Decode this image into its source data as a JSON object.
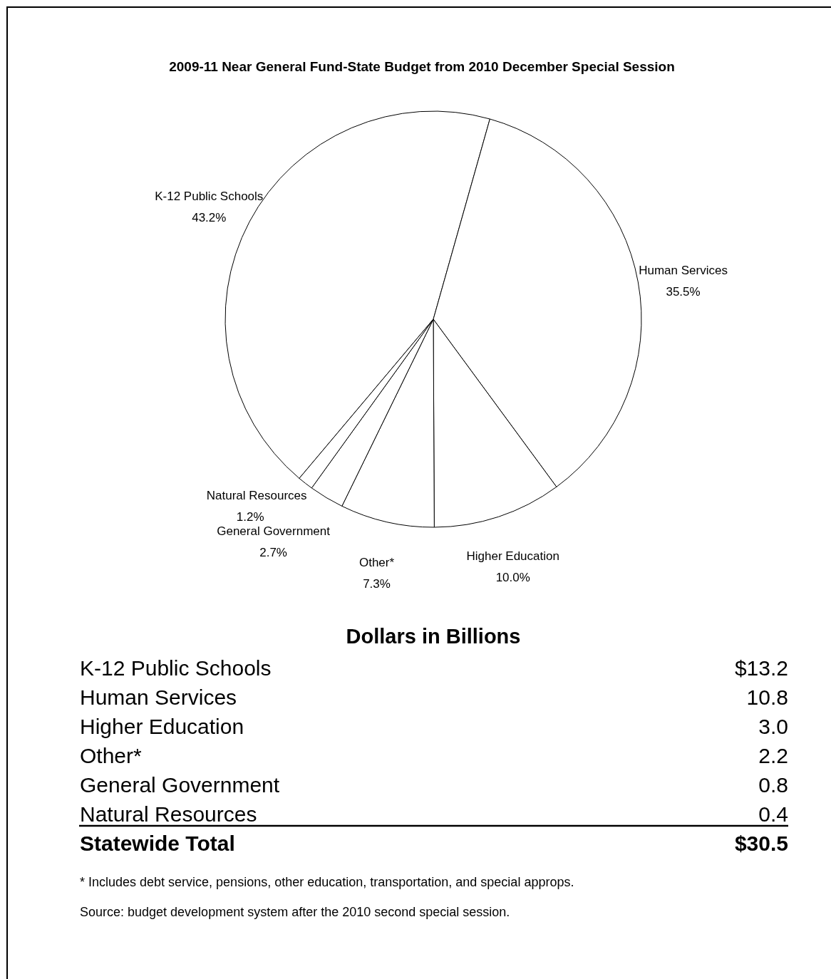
{
  "chart_data": {
    "type": "pie",
    "title": "2009-11 Near General Fund-State Budget from 2010 December Special Session",
    "categories": [
      "K-12 Public Schools",
      "Human Services",
      "Higher Education",
      "Other*",
      "General Government",
      "Natural Resources"
    ],
    "values": [
      43.2,
      35.5,
      10.0,
      7.3,
      2.7,
      1.2
    ],
    "colors": [
      "#ffffff",
      "#ffffff",
      "#ffffff",
      "#ffffff",
      "#ffffff",
      "#ffffff"
    ],
    "value_labels": [
      "43.2%",
      "35.5%",
      "10.0%",
      "7.3%",
      "2.7%",
      "1.2%"
    ],
    "annotations": [
      "Dollars in Billions",
      "K-12 Public Schools\t$13.2",
      "Human Services\t10.8",
      "Higher Education\t3.0",
      "Other*\t2.2",
      "General Government\t0.8",
      "Natural Resources\t0.4",
      "Statewide Total\t$30.5",
      "* Includes debt service, pensions, other education, transportation, and special approps.",
      "Source: budget development system after the 2010 second special session."
    ]
  }
}
